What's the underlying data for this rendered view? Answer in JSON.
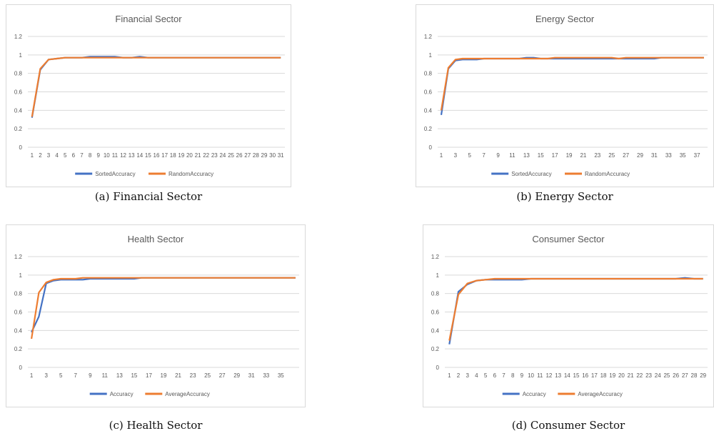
{
  "chart_data": [
    {
      "type": "line",
      "title": "Financial Sector",
      "caption": "(a) Financial Sector",
      "xlabel": "",
      "ylabel": "",
      "ylim": [
        0,
        1.2
      ],
      "yticks": [
        "0",
        "0.2",
        "0.4",
        "0.6",
        "0.8",
        "1",
        "1.2"
      ],
      "x": [
        1,
        2,
        3,
        4,
        5,
        6,
        7,
        8,
        9,
        10,
        11,
        12,
        13,
        14,
        15,
        16,
        17,
        18,
        19,
        20,
        21,
        22,
        23,
        24,
        25,
        26,
        27,
        28,
        29,
        30,
        31
      ],
      "xtick_labels": [
        "1",
        "2",
        "3",
        "4",
        "5",
        "6",
        "7",
        "8",
        "9",
        "10",
        "11",
        "12",
        "13",
        "14",
        "15",
        "16",
        "17",
        "18",
        "19",
        "20",
        "21",
        "22",
        "23",
        "24",
        "25",
        "26",
        "27",
        "28",
        "29",
        "30",
        "31"
      ],
      "grid": true,
      "legend_position": "bottom",
      "series": [
        {
          "name": "SortedAccuracy",
          "color": "#4472c4",
          "values": [
            0.32,
            0.84,
            0.95,
            0.96,
            0.97,
            0.97,
            0.97,
            0.98,
            0.98,
            0.98,
            0.98,
            0.97,
            0.97,
            0.98,
            0.97,
            0.97,
            0.97,
            0.97,
            0.97,
            0.97,
            0.97,
            0.97,
            0.97,
            0.97,
            0.97,
            0.97,
            0.97,
            0.97,
            0.97,
            0.97,
            0.97
          ]
        },
        {
          "name": "RandomAccuracy",
          "color": "#ed7d31",
          "values": [
            0.33,
            0.85,
            0.95,
            0.96,
            0.97,
            0.97,
            0.97,
            0.97,
            0.97,
            0.97,
            0.97,
            0.97,
            0.97,
            0.97,
            0.97,
            0.97,
            0.97,
            0.97,
            0.97,
            0.97,
            0.97,
            0.97,
            0.97,
            0.97,
            0.97,
            0.97,
            0.97,
            0.97,
            0.97,
            0.97,
            0.97
          ]
        }
      ]
    },
    {
      "type": "line",
      "title": "Energy Sector",
      "caption": "(b) Energy Sector",
      "xlabel": "",
      "ylabel": "",
      "ylim": [
        0,
        1.2
      ],
      "yticks": [
        "0",
        "0.2",
        "0.4",
        "0.6",
        "0.8",
        "1",
        "1.2"
      ],
      "x": [
        1,
        2,
        3,
        4,
        5,
        6,
        7,
        8,
        9,
        10,
        11,
        12,
        13,
        14,
        15,
        16,
        17,
        18,
        19,
        20,
        21,
        22,
        23,
        24,
        25,
        26,
        27,
        28,
        29,
        30,
        31,
        32,
        33,
        34,
        35,
        36,
        37,
        38
      ],
      "xtick_labels": [
        "1",
        "",
        "3",
        "",
        "5",
        "",
        "7",
        "",
        "9",
        "",
        "11",
        "",
        "13",
        "",
        "15",
        "",
        "17",
        "",
        "19",
        "",
        "21",
        "",
        "23",
        "",
        "25",
        "",
        "27",
        "",
        "29",
        "",
        "31",
        "",
        "33",
        "",
        "35",
        "",
        "37",
        ""
      ],
      "grid": true,
      "legend_position": "bottom",
      "series": [
        {
          "name": "SortedAccuracy",
          "color": "#4472c4",
          "values": [
            0.35,
            0.85,
            0.94,
            0.95,
            0.95,
            0.95,
            0.96,
            0.96,
            0.96,
            0.96,
            0.96,
            0.96,
            0.97,
            0.97,
            0.96,
            0.96,
            0.96,
            0.96,
            0.96,
            0.96,
            0.96,
            0.96,
            0.96,
            0.96,
            0.96,
            0.96,
            0.96,
            0.96,
            0.96,
            0.96,
            0.96,
            0.97,
            0.97,
            0.97,
            0.97,
            0.97,
            0.97,
            0.97
          ]
        },
        {
          "name": "RandomAccuracy",
          "color": "#ed7d31",
          "values": [
            0.4,
            0.86,
            0.95,
            0.96,
            0.96,
            0.96,
            0.96,
            0.96,
            0.96,
            0.96,
            0.96,
            0.96,
            0.96,
            0.96,
            0.96,
            0.96,
            0.97,
            0.97,
            0.97,
            0.97,
            0.97,
            0.97,
            0.97,
            0.97,
            0.97,
            0.96,
            0.97,
            0.97,
            0.97,
            0.97,
            0.97,
            0.97,
            0.97,
            0.97,
            0.97,
            0.97,
            0.97,
            0.97
          ]
        }
      ]
    },
    {
      "type": "line",
      "title": "Health Sector",
      "caption": "(c) Health Sector",
      "xlabel": "",
      "ylabel": "",
      "ylim": [
        0,
        1.2
      ],
      "yticks": [
        "0",
        "0.2",
        "0.4",
        "0.6",
        "0.8",
        "1",
        "1.2"
      ],
      "x": [
        1,
        2,
        3,
        4,
        5,
        6,
        7,
        8,
        9,
        10,
        11,
        12,
        13,
        14,
        15,
        16,
        17,
        18,
        19,
        20,
        21,
        22,
        23,
        24,
        25,
        26,
        27,
        28,
        29,
        30,
        31,
        32,
        33,
        34,
        35,
        36,
        37
      ],
      "xtick_labels": [
        "1",
        "",
        "3",
        "",
        "5",
        "",
        "7",
        "",
        "9",
        "",
        "11",
        "",
        "13",
        "",
        "15",
        "",
        "17",
        "",
        "19",
        "",
        "21",
        "",
        "23",
        "",
        "25",
        "",
        "27",
        "",
        "29",
        "",
        "31",
        "",
        "33",
        "",
        "35",
        "",
        ""
      ],
      "grid": true,
      "legend_position": "bottom",
      "series": [
        {
          "name": "Accuracy",
          "color": "#4472c4",
          "values": [
            0.38,
            0.55,
            0.91,
            0.94,
            0.95,
            0.95,
            0.95,
            0.95,
            0.96,
            0.96,
            0.96,
            0.96,
            0.96,
            0.96,
            0.96,
            0.97,
            0.97,
            0.97,
            0.97,
            0.97,
            0.97,
            0.97,
            0.97,
            0.97,
            0.97,
            0.97,
            0.97,
            0.97,
            0.97,
            0.97,
            0.97,
            0.97,
            0.97,
            0.97,
            0.97,
            0.97,
            0.97
          ]
        },
        {
          "name": "AverageAccuracy",
          "color": "#ed7d31",
          "values": [
            0.31,
            0.81,
            0.92,
            0.95,
            0.96,
            0.96,
            0.96,
            0.97,
            0.97,
            0.97,
            0.97,
            0.97,
            0.97,
            0.97,
            0.97,
            0.97,
            0.97,
            0.97,
            0.97,
            0.97,
            0.97,
            0.97,
            0.97,
            0.97,
            0.97,
            0.97,
            0.97,
            0.97,
            0.97,
            0.97,
            0.97,
            0.97,
            0.97,
            0.97,
            0.97,
            0.97,
            0.97
          ]
        }
      ]
    },
    {
      "type": "line",
      "title": "Consumer Sector",
      "caption": "(d) Consumer Sector",
      "xlabel": "",
      "ylabel": "",
      "ylim": [
        0,
        1.2
      ],
      "yticks": [
        "0",
        "0.2",
        "0.4",
        "0.6",
        "0.8",
        "1",
        "1.2"
      ],
      "x": [
        1,
        2,
        3,
        4,
        5,
        6,
        7,
        8,
        9,
        10,
        11,
        12,
        13,
        14,
        15,
        16,
        17,
        18,
        19,
        20,
        21,
        22,
        23,
        24,
        25,
        26,
        27,
        28,
        29
      ],
      "xtick_labels": [
        "1",
        "2",
        "3",
        "4",
        "5",
        "6",
        "7",
        "8",
        "9",
        "10",
        "11",
        "12",
        "13",
        "14",
        "15",
        "16",
        "17",
        "18",
        "19",
        "20",
        "21",
        "22",
        "23",
        "24",
        "25",
        "26",
        "27",
        "28",
        "29"
      ],
      "grid": true,
      "legend_position": "bottom",
      "series": [
        {
          "name": "Accuracy",
          "color": "#4472c4",
          "values": [
            0.25,
            0.82,
            0.9,
            0.94,
            0.95,
            0.95,
            0.95,
            0.95,
            0.95,
            0.96,
            0.96,
            0.96,
            0.96,
            0.96,
            0.96,
            0.96,
            0.96,
            0.96,
            0.96,
            0.96,
            0.96,
            0.96,
            0.96,
            0.96,
            0.96,
            0.96,
            0.97,
            0.96,
            0.96
          ]
        },
        {
          "name": "AverageAccuracy",
          "color": "#ed7d31",
          "values": [
            0.29,
            0.79,
            0.91,
            0.94,
            0.95,
            0.96,
            0.96,
            0.96,
            0.96,
            0.96,
            0.96,
            0.96,
            0.96,
            0.96,
            0.96,
            0.96,
            0.96,
            0.96,
            0.96,
            0.96,
            0.96,
            0.96,
            0.96,
            0.96,
            0.96,
            0.96,
            0.96,
            0.96,
            0.96
          ]
        }
      ]
    }
  ]
}
